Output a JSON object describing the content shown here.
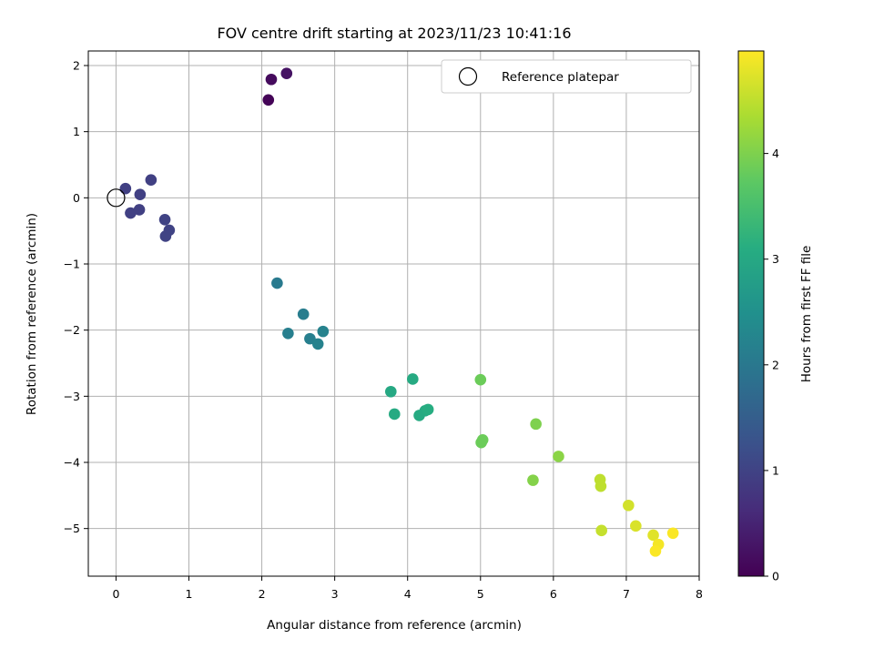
{
  "chart_data": {
    "type": "scatter",
    "title": "FOV centre drift starting at 2023/11/23 10:41:16",
    "xlabel": "Angular distance from reference (arcmin)",
    "ylabel": "Rotation from reference (arcmin)",
    "xlim": [
      -0.38,
      8.0
    ],
    "ylim": [
      -5.72,
      2.22
    ],
    "xticks": [
      "0",
      "1",
      "2",
      "3",
      "4",
      "5",
      "6",
      "7",
      "8"
    ],
    "xtick_values": [
      0,
      1,
      2,
      3,
      4,
      5,
      6,
      7,
      8
    ],
    "yticks": [
      "−5",
      "−4",
      "−3",
      "−2",
      "−1",
      "0",
      "1",
      "2"
    ],
    "ytick_values": [
      -5,
      -4,
      -3,
      -2,
      -1,
      0,
      1,
      2
    ],
    "grid": true,
    "legend": {
      "placement": "upper right",
      "entries": [
        "Reference platepar"
      ]
    },
    "reference_point": {
      "x": 0,
      "y": 0
    },
    "colorbar": {
      "label": "Hours from first FF file",
      "colormap": "viridis",
      "range": [
        0,
        4.97
      ],
      "ticks": [
        "0",
        "1",
        "2",
        "3",
        "4"
      ],
      "tick_values": [
        0,
        1,
        2,
        3,
        4
      ]
    },
    "points": [
      {
        "x": 2.09,
        "y": 1.48,
        "c": 0.05
      },
      {
        "x": 2.13,
        "y": 1.79,
        "c": 0.15
      },
      {
        "x": 2.34,
        "y": 1.88,
        "c": 0.25
      },
      {
        "x": 0.13,
        "y": 0.14,
        "c": 0.95
      },
      {
        "x": 0.48,
        "y": 0.27,
        "c": 0.95
      },
      {
        "x": 0.33,
        "y": 0.05,
        "c": 0.95
      },
      {
        "x": 0.2,
        "y": -0.23,
        "c": 0.95
      },
      {
        "x": 0.32,
        "y": -0.18,
        "c": 0.95
      },
      {
        "x": 0.67,
        "y": -0.33,
        "c": 1.0
      },
      {
        "x": 0.73,
        "y": -0.49,
        "c": 1.0
      },
      {
        "x": 0.68,
        "y": -0.58,
        "c": 1.0
      },
      {
        "x": 2.21,
        "y": -1.29,
        "c": 2.05
      },
      {
        "x": 2.57,
        "y": -1.76,
        "c": 2.1
      },
      {
        "x": 2.36,
        "y": -2.05,
        "c": 2.15
      },
      {
        "x": 2.66,
        "y": -2.13,
        "c": 2.15
      },
      {
        "x": 2.77,
        "y": -2.21,
        "c": 2.2
      },
      {
        "x": 2.84,
        "y": -2.02,
        "c": 2.2
      },
      {
        "x": 3.77,
        "y": -2.93,
        "c": 3.0
      },
      {
        "x": 4.07,
        "y": -2.74,
        "c": 3.05
      },
      {
        "x": 3.82,
        "y": -3.27,
        "c": 3.05
      },
      {
        "x": 4.16,
        "y": -3.29,
        "c": 3.05
      },
      {
        "x": 4.24,
        "y": -3.22,
        "c": 3.05
      },
      {
        "x": 4.28,
        "y": -3.2,
        "c": 3.1
      },
      {
        "x": 5.0,
        "y": -2.75,
        "c": 3.85
      },
      {
        "x": 5.01,
        "y": -3.7,
        "c": 3.85
      },
      {
        "x": 5.03,
        "y": -3.66,
        "c": 3.85
      },
      {
        "x": 5.76,
        "y": -3.42,
        "c": 4.0
      },
      {
        "x": 6.07,
        "y": -3.91,
        "c": 4.1
      },
      {
        "x": 5.72,
        "y": -4.27,
        "c": 4.05
      },
      {
        "x": 6.64,
        "y": -4.26,
        "c": 4.5
      },
      {
        "x": 6.65,
        "y": -4.36,
        "c": 4.5
      },
      {
        "x": 6.66,
        "y": -5.03,
        "c": 4.55
      },
      {
        "x": 7.03,
        "y": -4.65,
        "c": 4.65
      },
      {
        "x": 7.13,
        "y": -4.96,
        "c": 4.7
      },
      {
        "x": 7.37,
        "y": -5.1,
        "c": 4.75
      },
      {
        "x": 7.44,
        "y": -5.24,
        "c": 4.9
      },
      {
        "x": 7.4,
        "y": -5.34,
        "c": 4.95
      },
      {
        "x": 7.64,
        "y": -5.07,
        "c": 4.95
      }
    ]
  }
}
